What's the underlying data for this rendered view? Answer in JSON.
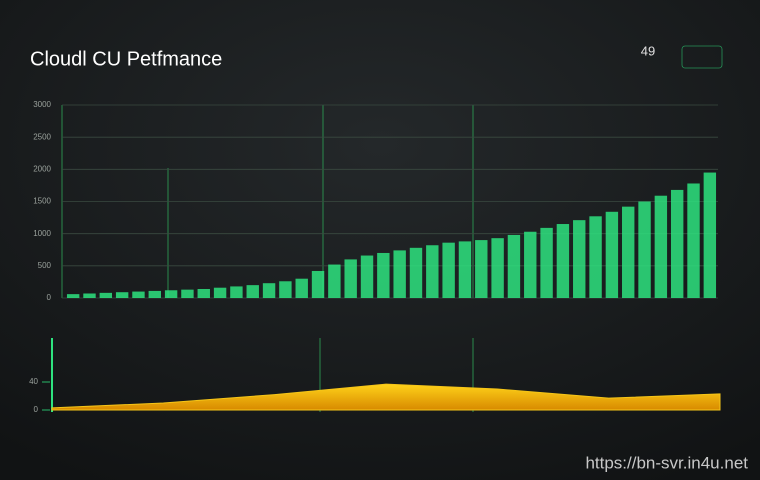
{
  "title": "Cloudl CU Petfmance",
  "corner": "49",
  "watermark": "https://bn-svr.in4u.net",
  "chart_data": [
    {
      "type": "bar",
      "values": [
        60,
        70,
        80,
        90,
        100,
        110,
        120,
        130,
        140,
        160,
        180,
        200,
        230,
        260,
        300,
        420,
        520,
        600,
        660,
        700,
        740,
        780,
        820,
        860,
        880,
        900,
        930,
        980,
        1030,
        1090,
        1150,
        1210,
        1270,
        1340,
        1420,
        1500,
        1590,
        1680,
        1780,
        1950
      ],
      "color": "#2ee37f",
      "ylim": [
        0,
        3000
      ],
      "yticks": [
        0,
        500,
        1000,
        1500,
        2000,
        2500,
        3000
      ],
      "grid": true
    },
    {
      "type": "area",
      "values": [
        3,
        10,
        22,
        37,
        30,
        17,
        23
      ],
      "color": "#f5c518",
      "ylim": [
        0,
        100
      ],
      "yticks": [
        0,
        40
      ],
      "grid": false
    }
  ]
}
